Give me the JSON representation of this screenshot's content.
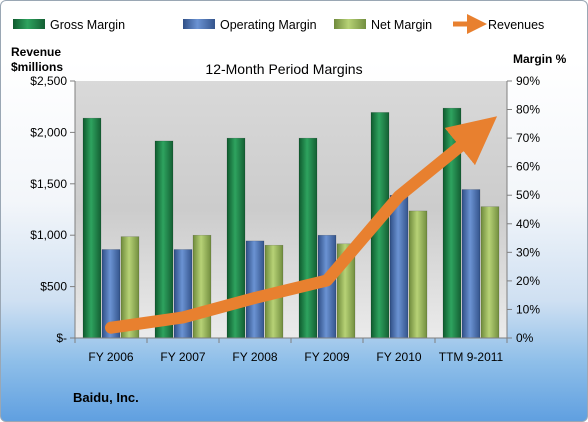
{
  "chart_data": {
    "type": "bar",
    "title": "12-Month Period Margins",
    "company": "Baidu, Inc.",
    "categories": [
      "FY 2006",
      "FY 2007",
      "FY 2008",
      "FY 2009",
      "FY 2010",
      "TTM 9-2011"
    ],
    "y_left_label_line1": "Revenue",
    "y_left_label_line2": "$millions",
    "y_right_label": "Margin %",
    "y_left_ticks": [
      "$-",
      "$500",
      "$1,000",
      "$1,500",
      "$2,000",
      "$2,500"
    ],
    "y_right_ticks": [
      "0%",
      "10%",
      "20%",
      "30%",
      "40%",
      "50%",
      "60%",
      "70%",
      "80%",
      "90%"
    ],
    "y_left_range": [
      0,
      2500
    ],
    "y_right_range": [
      0,
      90
    ],
    "series": [
      {
        "name": "Gross Margin",
        "type": "bar",
        "axis": "right",
        "color": "#1f8a4c",
        "values": [
          77,
          69,
          70,
          70,
          79,
          80.5
        ]
      },
      {
        "name": "Operating Margin",
        "type": "bar",
        "axis": "right",
        "color": "#4a73b8",
        "values": [
          31,
          31,
          34,
          36,
          50,
          52
        ]
      },
      {
        "name": "Net Margin",
        "type": "bar",
        "axis": "right",
        "color": "#98b85a",
        "values": [
          35.5,
          36,
          32.5,
          33,
          44.5,
          46
        ]
      },
      {
        "name": "Revenues",
        "type": "line",
        "axis": "left",
        "color": "#e8802f",
        "values": [
          100,
          200,
          390,
          560,
          1380,
          1950
        ]
      }
    ],
    "legend_position": "top",
    "grid": false
  }
}
